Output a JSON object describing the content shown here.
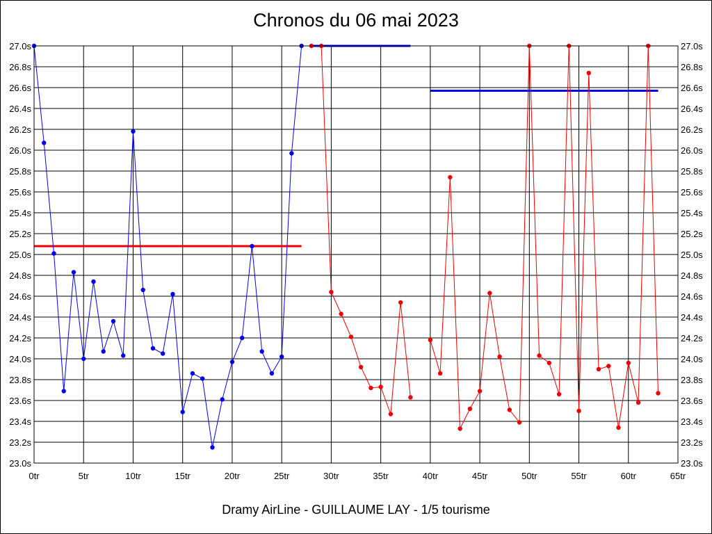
{
  "chart_data": {
    "type": "line",
    "title": "Chronos du 06 mai 2023",
    "caption": "Dramy AirLine - GUILLAUME LAY - 1/5 tourisme",
    "xlabel": "",
    "ylabel": "",
    "xlim": [
      0,
      65
    ],
    "ylim": [
      23.0,
      27.0
    ],
    "grid": true,
    "x_tick_labels": [
      "0tr",
      "5tr",
      "10tr",
      "15tr",
      "20tr",
      "25tr",
      "30tr",
      "35tr",
      "40tr",
      "45tr",
      "50tr",
      "55tr",
      "60tr",
      "65tr"
    ],
    "y_tick_labels": [
      "27.0s",
      "26.8s",
      "26.6s",
      "26.4s",
      "26.2s",
      "26.0s",
      "25.8s",
      "25.6s",
      "25.4s",
      "25.2s",
      "25.0s",
      "24.8s",
      "24.6s",
      "24.4s",
      "24.2s",
      "24.0s",
      "23.8s",
      "23.6s",
      "23.4s",
      "23.2s",
      "23.0s"
    ],
    "series": [
      {
        "color": "#0000ee",
        "x": [
          0,
          1,
          2,
          3,
          4,
          5,
          6,
          7,
          8,
          9,
          10,
          11,
          12,
          13,
          14,
          15,
          16,
          17,
          18,
          19,
          20,
          21,
          22,
          23,
          24,
          25,
          26,
          27
        ],
        "y": [
          27.0,
          26.07,
          25.01,
          23.69,
          24.83,
          24.0,
          24.74,
          24.07,
          24.36,
          24.03,
          26.18,
          24.66,
          24.1,
          24.05,
          24.62,
          23.49,
          23.86,
          23.81,
          23.15,
          23.61,
          23.97,
          24.2,
          25.08,
          24.07,
          23.86,
          24.02,
          25.97,
          27.0
        ]
      },
      {
        "color": "#ee0000",
        "x": [
          28,
          29,
          30,
          31,
          32,
          33,
          34,
          35,
          36,
          37,
          38
        ],
        "y": [
          27.0,
          27.0,
          24.64,
          24.43,
          24.21,
          23.92,
          23.72,
          23.73,
          23.47,
          24.54,
          23.63
        ]
      },
      {
        "color": "#ee0000",
        "x": [
          40,
          41,
          42,
          43,
          44,
          45,
          46,
          47,
          48,
          49,
          50,
          51,
          52,
          53,
          54,
          55,
          56,
          57,
          58,
          59,
          60,
          61,
          62,
          63
        ],
        "y": [
          24.18,
          23.86,
          25.74,
          23.33,
          23.52,
          23.69,
          24.63,
          24.02,
          23.51,
          23.39,
          27.0,
          24.03,
          23.96,
          23.66,
          27.0,
          23.5,
          26.74,
          23.9,
          23.93,
          23.34,
          23.96,
          23.58,
          27.0,
          23.67
        ]
      }
    ],
    "reference_lines": [
      {
        "color": "#ee0000",
        "x": [
          0,
          27
        ],
        "y": 25.08
      },
      {
        "color": "#0000ee",
        "x": [
          28,
          38
        ],
        "y": 27.0
      },
      {
        "color": "#0000ee",
        "x": [
          40,
          63
        ],
        "y": 26.57
      }
    ]
  }
}
